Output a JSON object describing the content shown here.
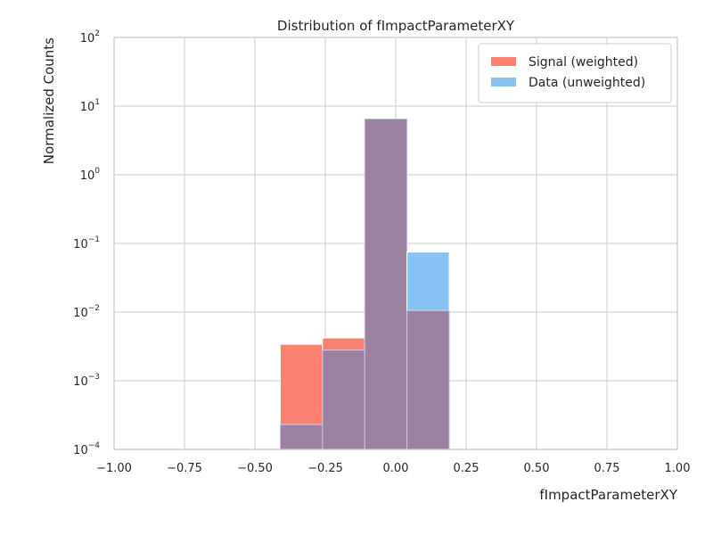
{
  "chart_data": {
    "type": "bar",
    "title": "Distribution of fImpactParameterXY",
    "xlabel": "fImpactParameterXY",
    "ylabel": "Normalized Counts",
    "xlim": [
      -1.0,
      1.0
    ],
    "ylim": [
      0.0001,
      100
    ],
    "yscale": "log",
    "grid": true,
    "legend_position": "top-right",
    "x_ticks": [
      "-1.00",
      "-0.75",
      "-0.50",
      "-0.25",
      "0.00",
      "0.25",
      "0.50",
      "0.75",
      "1.00"
    ],
    "x_tick_values": [
      -1.0,
      -0.75,
      -0.5,
      -0.25,
      0.0,
      0.25,
      0.5,
      0.75,
      1.0
    ],
    "y_ticks": [
      {
        "base": "10",
        "exp": "2",
        "value": 100
      },
      {
        "base": "10",
        "exp": "1",
        "value": 10
      },
      {
        "base": "10",
        "exp": "0",
        "value": 1
      },
      {
        "base": "10",
        "exp": "−1",
        "value": 0.1
      },
      {
        "base": "10",
        "exp": "−2",
        "value": 0.01
      },
      {
        "base": "10",
        "exp": "−3",
        "value": 0.001
      },
      {
        "base": "10",
        "exp": "−4",
        "value": 0.0001
      }
    ],
    "bin_edges": [
      -0.41,
      -0.26,
      -0.11,
      0.04,
      0.19
    ],
    "series": [
      {
        "name": "Signal (weighted)",
        "color": "#fa8072",
        "values": [
          0.0034,
          0.0042,
          6.5,
          0.0105
        ]
      },
      {
        "name": "Data (unweighted)",
        "color": "#87c2f5",
        "values": [
          0.00023,
          0.0028,
          6.5,
          0.075
        ]
      }
    ],
    "overlap_color": "#9b82a1"
  }
}
